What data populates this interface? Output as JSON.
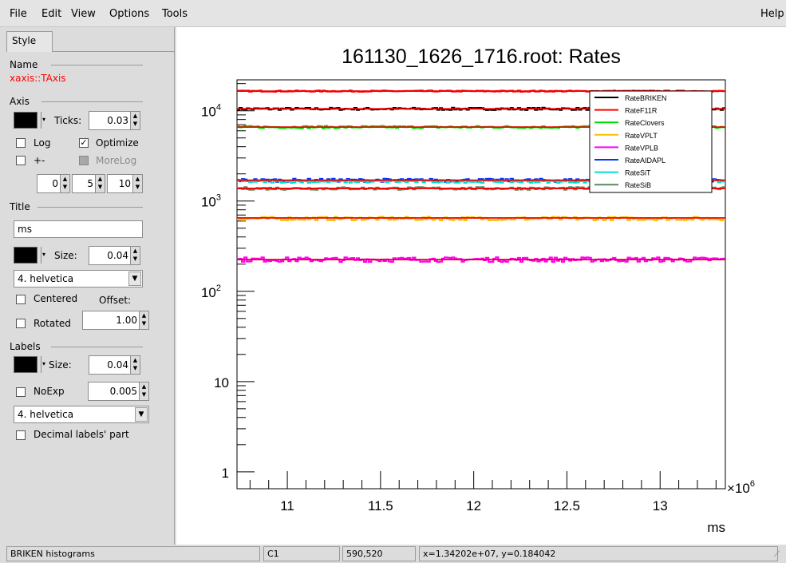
{
  "menu": {
    "file": "File",
    "edit": "Edit",
    "view": "View",
    "options": "Options",
    "tools": "Tools",
    "help": "Help"
  },
  "editor": {
    "tab_style": "Style",
    "name_section": "Name",
    "object_name": "xaxis::TAxis",
    "axis_section": "Axis",
    "ticks_label": "Ticks:",
    "ticks_value": "0.03",
    "log_label": "Log",
    "optimize_label": "Optimize",
    "plusminus_label": "+-",
    "morelog_label": "MoreLog",
    "div1": "0",
    "div2": "5",
    "div3": "10",
    "title_section": "Title",
    "title_value": "ms",
    "size_label": "Size:",
    "title_size": "0.04",
    "title_font": "4. helvetica",
    "centered_label": "Centered",
    "offset_label": "Offset:",
    "rotated_label": "Rotated",
    "offset_value": "1.00",
    "labels_section": "Labels",
    "labels_size_label": "Size:",
    "labels_size": "0.04",
    "noexp_label": "NoExp",
    "noexp_value": "0.005",
    "labels_font": "4. helvetica",
    "decimal_label": "Decimal labels' part"
  },
  "status": {
    "name": "BRIKEN histograms",
    "canvas": "C1",
    "pixel": "590,520",
    "coords": "x=1.34202e+07, y=0.184042"
  },
  "chart_data": {
    "type": "line",
    "title": "161130_1626_1716.root: Rates",
    "xlabel": "ms",
    "ylabel": "",
    "x_multiplier_label": "×10",
    "x_multiplier_exp": "6",
    "x_scale_factor": 1000000,
    "xlim": [
      10.73,
      13.35
    ],
    "ylim": [
      0.65,
      22000
    ],
    "yscale": "log",
    "x_ticks": [
      "11",
      "11.5",
      "12",
      "12.5",
      "13"
    ],
    "x_tick_values": [
      11,
      11.5,
      12,
      12.5,
      13
    ],
    "y_ticks": [
      {
        "value": 1,
        "base": "1",
        "exp": ""
      },
      {
        "value": 10,
        "base": "10",
        "exp": ""
      },
      {
        "value": 100,
        "base": "10",
        "exp": "2"
      },
      {
        "value": 1000,
        "base": "10",
        "exp": "3"
      },
      {
        "value": 10000,
        "base": "10",
        "exp": "4"
      }
    ],
    "legend_position": "top-right",
    "series": [
      {
        "name": "RateBRIKEN",
        "color": "#000000",
        "level": 10500,
        "noise": 0.03
      },
      {
        "name": "RateF11R",
        "color": "#ff0000",
        "level": 16500,
        "noise": 0.015
      },
      {
        "name": "RateClovers",
        "color": "#00dd00",
        "level": 6600,
        "noise": 0.03
      },
      {
        "name": "RateVPLT",
        "color": "#ffbb00",
        "level": 640,
        "noise": 0.045
      },
      {
        "name": "RateVPLB",
        "color": "#ff00ff",
        "level": 225,
        "noise": 0.06
      },
      {
        "name": "RateAIDAPL",
        "color": "#0033ff",
        "level": 1700,
        "noise": 0.04
      },
      {
        "name": "RateSiT",
        "color": "#00e0d0",
        "level": 1650,
        "noise": 0.035
      },
      {
        "name": "RateSiB",
        "color": "#5a8a5a",
        "level": 1380,
        "noise": 0.035
      }
    ],
    "fit_lines": [
      16500,
      10500,
      6600,
      1700,
      1380,
      650,
      225
    ],
    "fit_color": "#ee0000"
  }
}
